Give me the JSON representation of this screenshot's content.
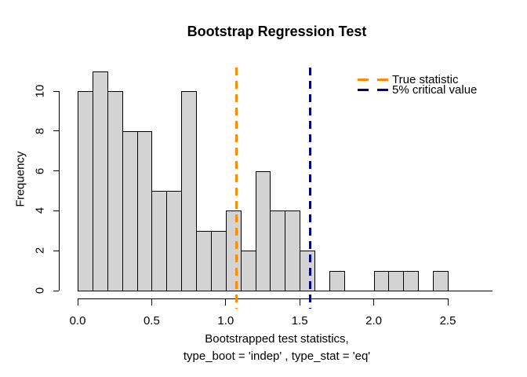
{
  "title": "Bootstrap Regression Test",
  "ylabel": "Frequency",
  "xlabel_line1": "Bootstrapped test statistics,",
  "xlabel_line2": "type_boot = 'indep' , type_stat = 'eq'",
  "colors": {
    "bar_fill": "#D3D3D3",
    "bar_stroke": "#000000",
    "true_statistic": "#FF8C00",
    "critical_value": "#000080",
    "background": "#FFFFFF"
  },
  "chart_data": {
    "type": "bar",
    "subtype": "histogram",
    "title": "Bootstrap Regression Test",
    "xlabel": "Bootstrapped test statistics, type_boot = 'indep' , type_stat = 'eq'",
    "ylabel": "Frequency",
    "bin_start": 0.0,
    "bin_width": 0.1,
    "counts": [
      10,
      11,
      10,
      8,
      8,
      5,
      5,
      10,
      3,
      3,
      4,
      2,
      6,
      4,
      4,
      2,
      0,
      1,
      0,
      0,
      1,
      1,
      1,
      0,
      1
    ],
    "total_observations": 100,
    "xticks": [
      "0.0",
      "0.5",
      "1.0",
      "1.5",
      "2.0",
      "2.5"
    ],
    "yticks": [
      "0",
      "2",
      "4",
      "6",
      "8",
      "10"
    ],
    "xlim": [
      0,
      2.8
    ],
    "ylim": [
      0,
      11
    ],
    "grid": "off",
    "legend_position": "topright",
    "vlines": [
      {
        "name": "true-statistic-line",
        "value": 1.07,
        "color": "#FF8C00",
        "label": "True statistic",
        "style": "dashed"
      },
      {
        "name": "critical-value-line",
        "value": 1.57,
        "color": "#000080",
        "label": "5% critical value",
        "style": "dashed"
      }
    ]
  }
}
